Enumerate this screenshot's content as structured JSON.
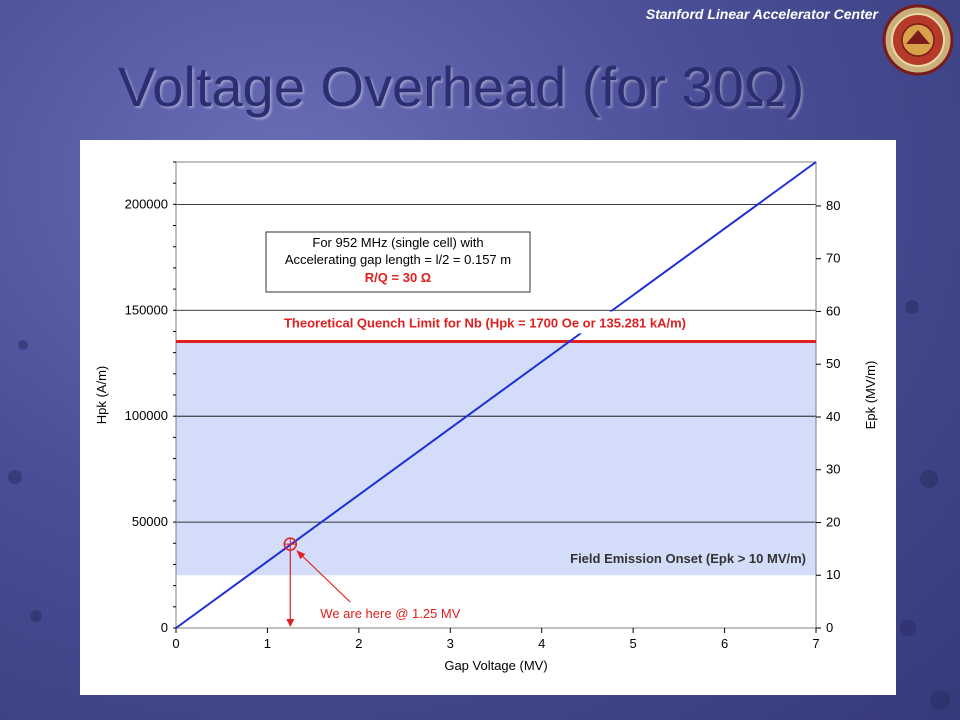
{
  "header": {
    "org": "Stanford Linear Accelerator Center",
    "title": "Voltage Overhead (for 30Ω)"
  },
  "colors": {
    "title": "#2b2f72",
    "line": "#1f2fd6",
    "quench": "#e02020",
    "band": "#d3dcf8",
    "annotation": "#e02020"
  },
  "chart_data": {
    "type": "line",
    "xlabel": "Gap Voltage (MV)",
    "ylabel_left": "Hpk (A/m)",
    "ylabel_right": "Epk (MV/m)",
    "xlim": [
      0,
      7
    ],
    "ylim_left": [
      0,
      220000
    ],
    "ylim_right": [
      0,
      88.33
    ],
    "x_ticks": [
      "0",
      "1",
      "2",
      "3",
      "4",
      "5",
      "6",
      "7"
    ],
    "y_ticks_left": [
      "0",
      "50000",
      "100000",
      "150000",
      "200000"
    ],
    "y_ticks_right": [
      "0",
      "10",
      "20",
      "30",
      "40",
      "50",
      "60",
      "70",
      "80"
    ],
    "series": [
      {
        "x": [
          0,
          7
        ],
        "y": [
          0,
          222000
        ]
      }
    ],
    "quench_limit": {
      "value": 135281,
      "label": "Theoretical Quench Limit for Nb (Hpk = 1700 Oe or 135.281 kA/m)"
    },
    "field_emission": {
      "epk": 10,
      "label": "Field Emission Onset (Epk > 10 MV/m)"
    },
    "info_box": {
      "line1": "For 952 MHz (single cell) with",
      "line2": "Accelerating gap length = l/2 = 0.157 m",
      "line3": "R/Q = 30 Ω"
    },
    "marker": {
      "x": 1.25,
      "y": 39600,
      "label": "We are here @ 1.25 MV"
    }
  }
}
